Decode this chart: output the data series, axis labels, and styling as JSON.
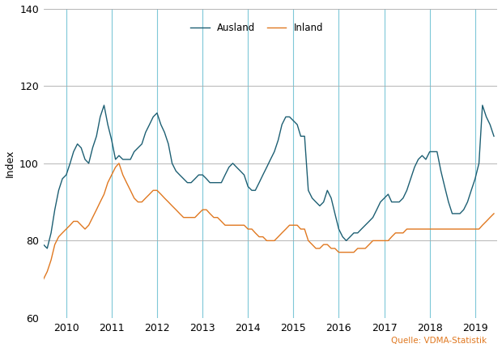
{
  "title": "",
  "ylabel": "Index",
  "source_text": "Quelle: VDMA-Statistik",
  "ylim": [
    60,
    140
  ],
  "yticks": [
    60,
    80,
    100,
    120,
    140
  ],
  "line_ausland_color": "#1d5f73",
  "line_inland_color": "#e07820",
  "grid_color_vertical": "#7ec8d8",
  "grid_color_horizontal": "#aaaaaa",
  "bg_color": "#ffffff",
  "legend_ausland": "Ausland",
  "legend_inland": "Inland",
  "source_color": "#e07820",
  "start_year": 2009,
  "start_month": 7,
  "ausland": [
    79,
    78,
    82,
    88,
    93,
    96,
    97,
    100,
    103,
    105,
    104,
    101,
    100,
    104,
    107,
    112,
    115,
    110,
    106,
    101,
    102,
    101,
    101,
    101,
    103,
    104,
    105,
    108,
    110,
    112,
    113,
    110,
    108,
    105,
    100,
    98,
    97,
    96,
    95,
    95,
    96,
    97,
    97,
    96,
    95,
    95,
    95,
    95,
    97,
    99,
    100,
    99,
    98,
    97,
    94,
    93,
    93,
    95,
    97,
    99,
    101,
    103,
    106,
    110,
    112,
    112,
    111,
    110,
    107,
    107,
    93,
    91,
    90,
    89,
    90,
    93,
    91,
    87,
    83,
    81,
    80,
    81,
    82,
    82,
    83,
    84,
    85,
    86,
    88,
    90,
    91,
    92,
    90,
    90,
    90,
    91,
    93,
    96,
    99,
    101,
    102,
    101,
    103,
    103,
    103,
    98,
    94,
    90,
    87,
    87,
    87,
    88,
    90,
    93,
    96,
    100,
    115,
    112,
    110,
    107
  ],
  "inland": [
    70,
    72,
    75,
    79,
    81,
    82,
    83,
    84,
    85,
    85,
    84,
    83,
    84,
    86,
    88,
    90,
    92,
    95,
    97,
    99,
    100,
    97,
    95,
    93,
    91,
    90,
    90,
    91,
    92,
    93,
    93,
    92,
    91,
    90,
    89,
    88,
    87,
    86,
    86,
    86,
    86,
    87,
    88,
    88,
    87,
    86,
    86,
    85,
    84,
    84,
    84,
    84,
    84,
    84,
    83,
    83,
    82,
    81,
    81,
    80,
    80,
    80,
    81,
    82,
    83,
    84,
    84,
    84,
    83,
    83,
    80,
    79,
    78,
    78,
    79,
    79,
    78,
    78,
    77,
    77,
    77,
    77,
    77,
    78,
    78,
    78,
    79,
    80,
    80,
    80,
    80,
    80,
    81,
    82,
    82,
    82,
    83,
    83,
    83,
    83,
    83,
    83,
    83,
    83,
    83,
    83,
    83,
    83,
    83,
    83,
    83,
    83,
    83,
    83,
    83,
    83,
    84,
    85,
    86,
    87
  ]
}
